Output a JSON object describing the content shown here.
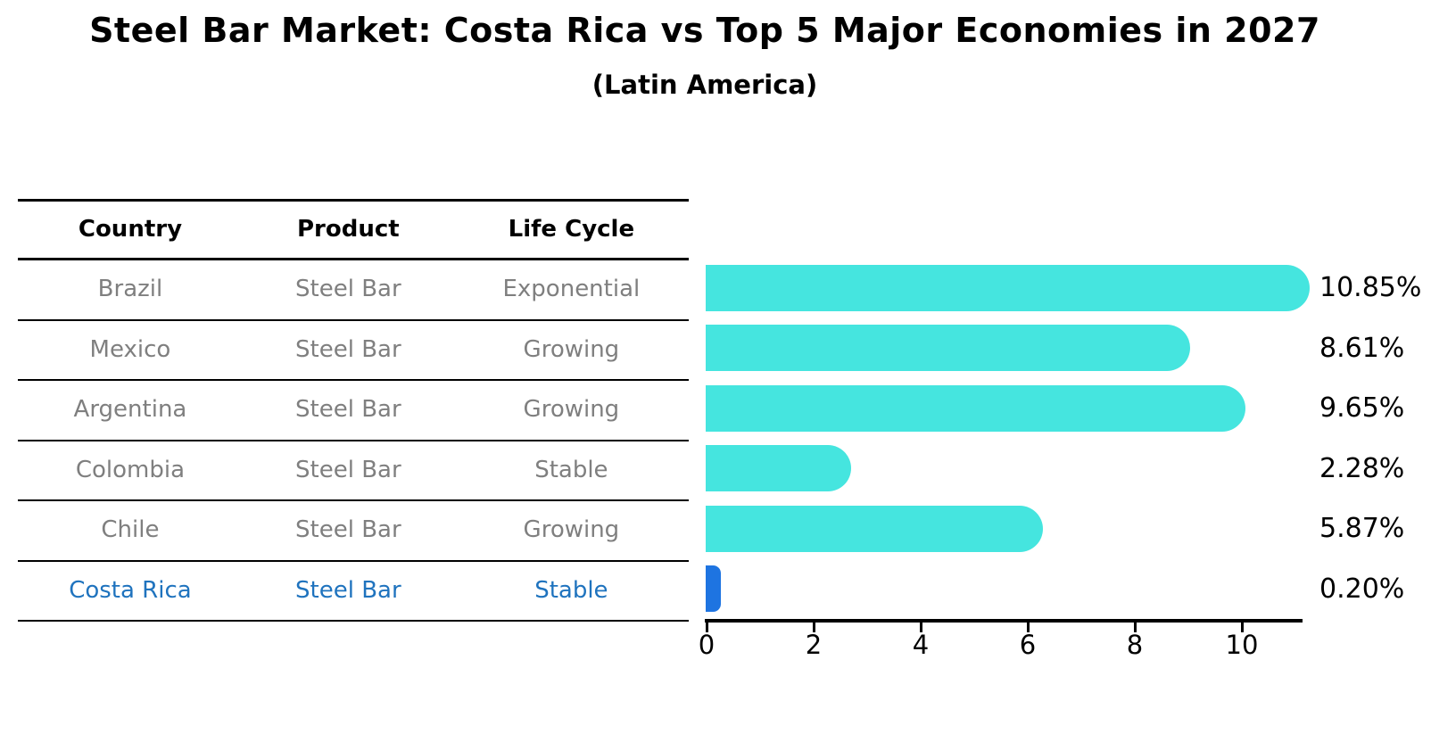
{
  "chart": {
    "title": "Steel Bar Market: Costa Rica vs Top 5 Major Economies in 2027",
    "subtitle": "(Latin America)"
  },
  "table": {
    "columns": [
      "Country",
      "Product",
      "Life Cycle"
    ],
    "rows": [
      {
        "country": "Brazil",
        "product": "Steel Bar",
        "life_cycle": "Exponential",
        "highlight": false
      },
      {
        "country": "Mexico",
        "product": "Steel Bar",
        "life_cycle": "Growing",
        "highlight": false
      },
      {
        "country": "Argentina",
        "product": "Steel Bar",
        "life_cycle": "Growing",
        "highlight": false
      },
      {
        "country": "Colombia",
        "product": "Steel Bar",
        "life_cycle": "Stable",
        "highlight": false
      },
      {
        "country": "Chile",
        "product": "Steel Bar",
        "life_cycle": "Growing",
        "highlight": false
      },
      {
        "country": "Costa Rica",
        "product": "Steel Bar",
        "life_cycle": "Stable",
        "highlight": true
      }
    ]
  },
  "chart_data": {
    "type": "bar",
    "orientation": "horizontal",
    "title": "Steel Bar Market: Costa Rica vs Top 5 Major Economies in 2027",
    "subtitle": "(Latin America)",
    "categories": [
      "Brazil",
      "Mexico",
      "Argentina",
      "Colombia",
      "Chile",
      "Costa Rica"
    ],
    "values": [
      10.85,
      8.61,
      9.65,
      2.28,
      5.87,
      0.2
    ],
    "value_labels": [
      "10.85%",
      "8.61%",
      "9.65%",
      "2.28%",
      "5.87%",
      "0.20%"
    ],
    "x_ticks": [
      0,
      2,
      4,
      6,
      8,
      10
    ],
    "xlim": [
      0,
      11.3
    ],
    "grid": false,
    "legend": false,
    "highlight_index": 5
  },
  "colors": {
    "bar": "#45e5df",
    "highlight_bar": "#1e74e1",
    "highlight_text": "#1f73be",
    "table_text": "#7f7f7f",
    "header_text": "#000000",
    "axis": "#000000"
  }
}
